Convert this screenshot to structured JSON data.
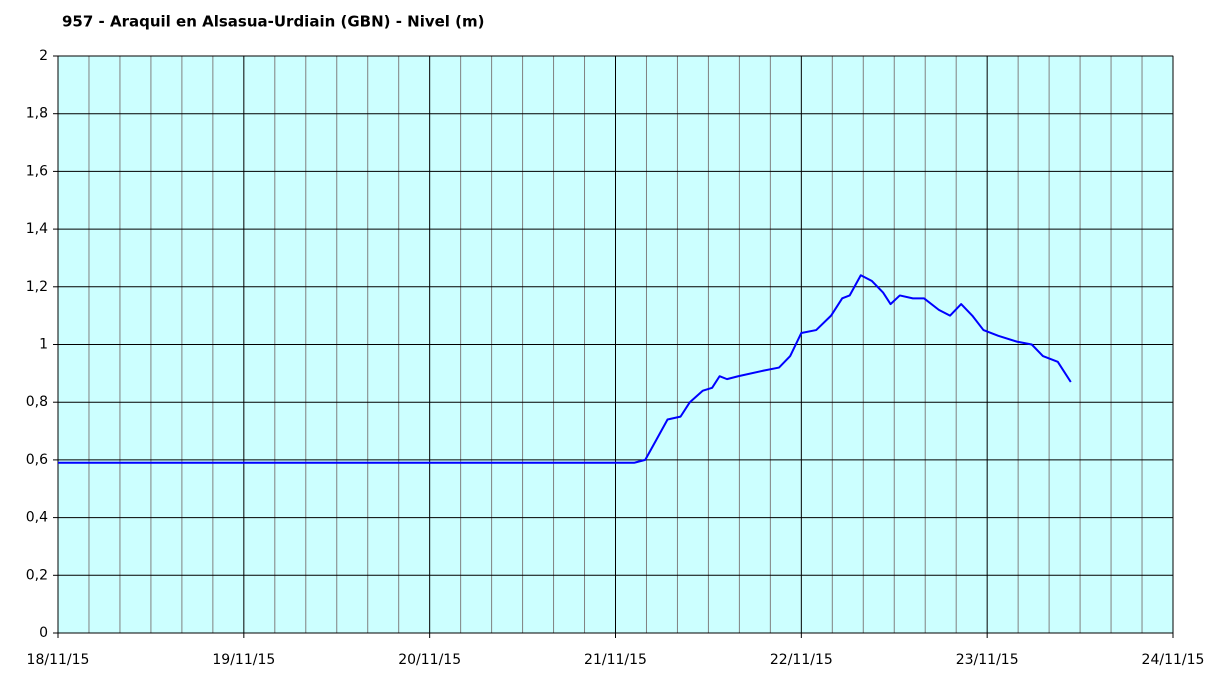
{
  "chart_data": {
    "type": "line",
    "title": "957 - Araquil en Alsasua-Urdiain (GBN) - Nivel (m)",
    "x": [
      0,
      0.3,
      0.6,
      0.9,
      1.2,
      1.5,
      1.8,
      2.1,
      2.4,
      2.7,
      3.0,
      3.1,
      3.16,
      3.22,
      3.28,
      3.35,
      3.4,
      3.47,
      3.52,
      3.56,
      3.6,
      3.66,
      3.8,
      3.88,
      3.94,
      4.0,
      4.08,
      4.16,
      4.22,
      4.26,
      4.32,
      4.38,
      4.44,
      4.48,
      4.53,
      4.6,
      4.66,
      4.74,
      4.8,
      4.86,
      4.92,
      4.98,
      5.06,
      5.16,
      5.24,
      5.3,
      5.38,
      5.45
    ],
    "series": [
      {
        "name": "Nivel",
        "color": "#0000ff",
        "values": [
          0.59,
          0.59,
          0.59,
          0.59,
          0.59,
          0.59,
          0.59,
          0.59,
          0.59,
          0.59,
          0.59,
          0.59,
          0.6,
          0.67,
          0.74,
          0.75,
          0.8,
          0.84,
          0.85,
          0.89,
          0.88,
          0.89,
          0.91,
          0.92,
          0.96,
          1.04,
          1.05,
          1.1,
          1.16,
          1.17,
          1.24,
          1.22,
          1.18,
          1.14,
          1.17,
          1.16,
          1.16,
          1.12,
          1.1,
          1.14,
          1.1,
          1.05,
          1.03,
          1.01,
          1.0,
          0.96,
          0.94,
          0.87
        ]
      }
    ],
    "xlim": [
      0,
      6
    ],
    "xticks": [
      {
        "value": 0,
        "label": "18/11/15"
      },
      {
        "value": 1,
        "label": "19/11/15"
      },
      {
        "value": 2,
        "label": "20/11/15"
      },
      {
        "value": 3,
        "label": "21/11/15"
      },
      {
        "value": 4,
        "label": "22/11/15"
      },
      {
        "value": 5,
        "label": "23/11/15"
      },
      {
        "value": 6,
        "label": "24/11/15"
      }
    ],
    "ylim": [
      0,
      2
    ],
    "yticks": [
      0,
      {
        "value": 0.2,
        "label": "0,2"
      },
      {
        "value": 0.4,
        "label": "0,4"
      },
      {
        "value": 0.6,
        "label": "0,6"
      },
      {
        "value": 0.8,
        "label": "0,8"
      },
      1,
      {
        "value": 1.2,
        "label": "1,2"
      },
      {
        "value": 1.4,
        "label": "1,4"
      },
      {
        "value": 1.6,
        "label": "1,6"
      },
      {
        "value": 1.8,
        "label": "1,8"
      },
      2
    ],
    "grid": true,
    "background": "#ccffff"
  }
}
